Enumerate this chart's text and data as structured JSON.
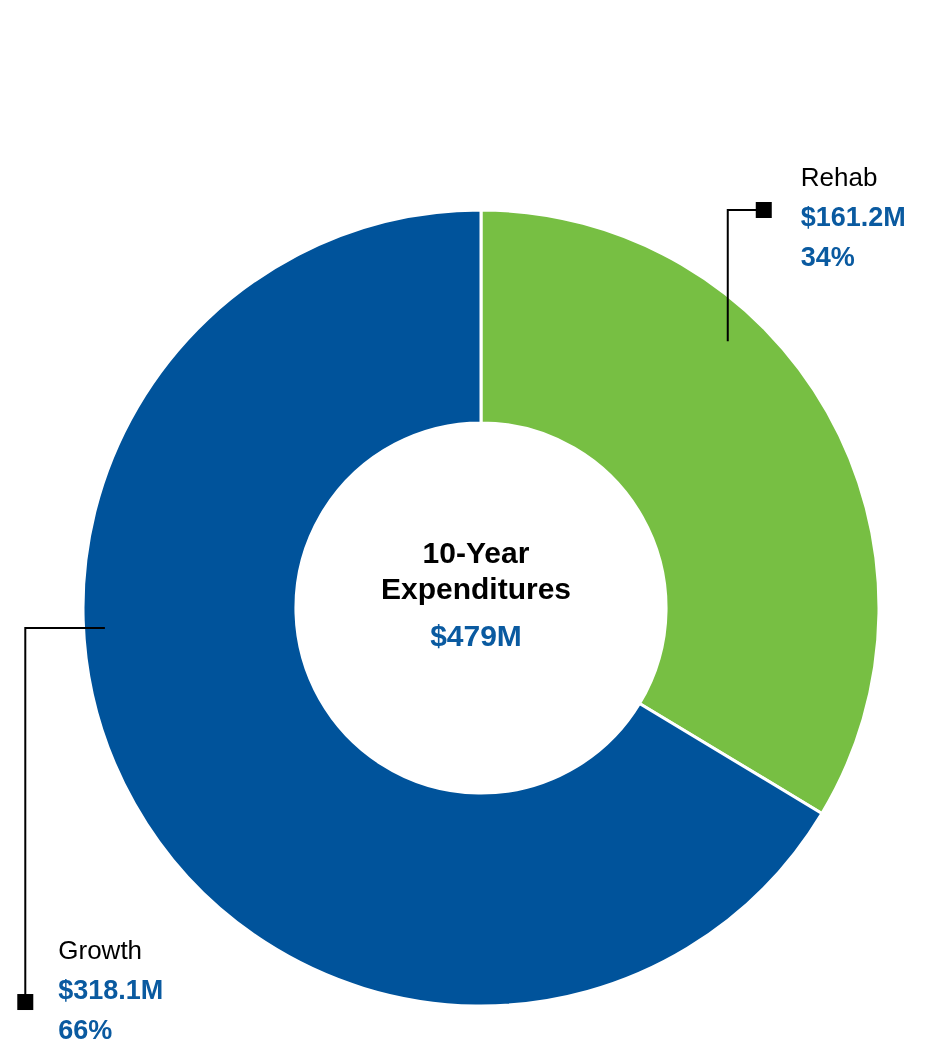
{
  "chart_data": {
    "type": "donut",
    "title": "10-Year Expenditures",
    "subtitle": "$479M",
    "categories": [
      "Rehab",
      "Growth"
    ],
    "values": [
      161.2,
      318.1
    ],
    "colors": [
      "#77bf43",
      "#00539b"
    ],
    "value_labels": [
      "$161.2M",
      "$318.1M"
    ],
    "annotations": [
      "34%",
      "66%"
    ],
    "legend": false
  }
}
